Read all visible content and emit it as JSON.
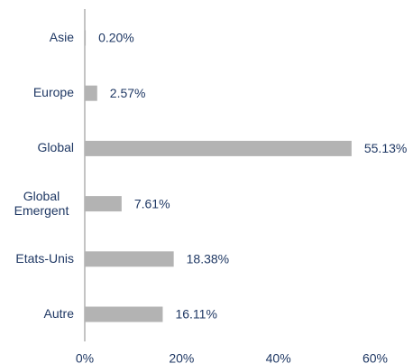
{
  "chart_data": {
    "type": "bar",
    "orientation": "horizontal",
    "categories": [
      "Asie",
      "Europe",
      "Global",
      "Global Emergent",
      "Etats-Unis",
      "Autre"
    ],
    "values": [
      0.2,
      2.57,
      55.13,
      7.61,
      18.38,
      16.11
    ],
    "value_labels": [
      "0.20%",
      "2.57%",
      "55.13%",
      "7.61%",
      "18.38%",
      "16.11%"
    ],
    "color": "#b3b3b3",
    "xlim": [
      0,
      60
    ],
    "xticks": [
      {
        "value": 0,
        "label": "0%"
      },
      {
        "value": 20,
        "label": "20%"
      },
      {
        "value": 40,
        "label": "40%"
      },
      {
        "value": 60,
        "label": "60%"
      }
    ],
    "grid": false
  }
}
